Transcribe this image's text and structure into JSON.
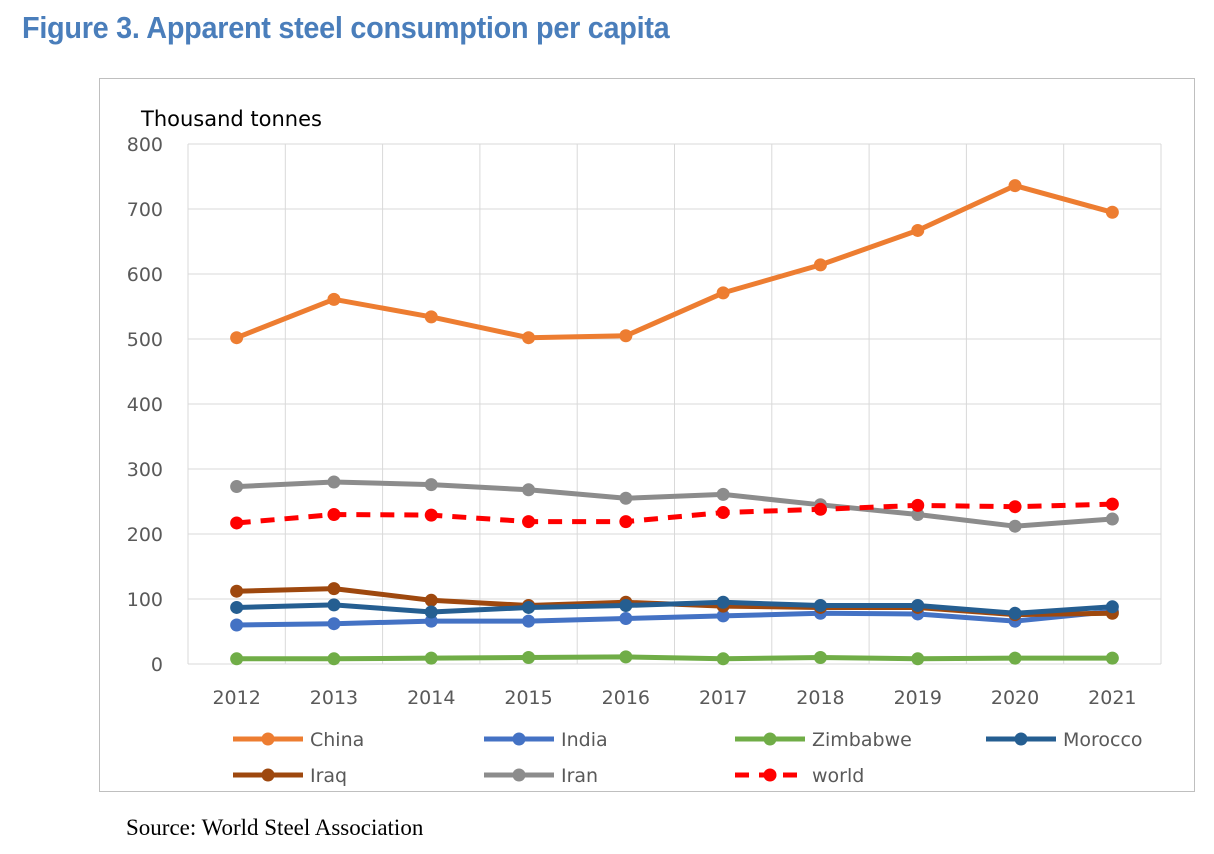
{
  "figure_title": "Figure  3. Apparent steel consumption per capita",
  "source": "Source: World Steel Association",
  "colors": {
    "title": "#4a7ebb",
    "China": "#ed7d31",
    "India": "#4472c4",
    "Zimbabwe": "#70ad47",
    "Morocco": "#255e91",
    "Iraq": "#9e480e",
    "Iran": "#8c8c8c",
    "world": "#ff0000"
  },
  "chart_data": {
    "type": "line",
    "title": "",
    "ylabel": "Thousand tonnes",
    "xlabel": "",
    "ylim": [
      0,
      800
    ],
    "yticks": [
      "0",
      "100",
      "200",
      "300",
      "400",
      "500",
      "600",
      "700",
      "800"
    ],
    "x": [
      "2012",
      "2013",
      "2014",
      "2015",
      "2016",
      "2017",
      "2018",
      "2019",
      "2020",
      "2021"
    ],
    "grid": true,
    "legend_position": "bottom",
    "series": [
      {
        "name": "China",
        "values": [
          502,
          561,
          534,
          502,
          505,
          571,
          614,
          667,
          736,
          695
        ],
        "dashed": false
      },
      {
        "name": "India",
        "values": [
          60,
          62,
          66,
          66,
          70,
          74,
          78,
          77,
          66,
          81
        ],
        "dashed": false
      },
      {
        "name": "Zimbabwe",
        "values": [
          8,
          8,
          9,
          10,
          11,
          8,
          10,
          8,
          9,
          9
        ],
        "dashed": false
      },
      {
        "name": "Morocco",
        "values": [
          87,
          91,
          80,
          87,
          90,
          95,
          90,
          90,
          78,
          88
        ],
        "dashed": false
      },
      {
        "name": "Iraq",
        "values": [
          112,
          116,
          98,
          90,
          95,
          89,
          87,
          87,
          76,
          78
        ],
        "dashed": false
      },
      {
        "name": "Iran",
        "values": [
          273,
          280,
          276,
          268,
          255,
          261,
          245,
          230,
          212,
          223
        ],
        "dashed": false
      },
      {
        "name": "world",
        "values": [
          217,
          230,
          229,
          219,
          219,
          233,
          238,
          244,
          242,
          246
        ],
        "dashed": true
      }
    ]
  }
}
